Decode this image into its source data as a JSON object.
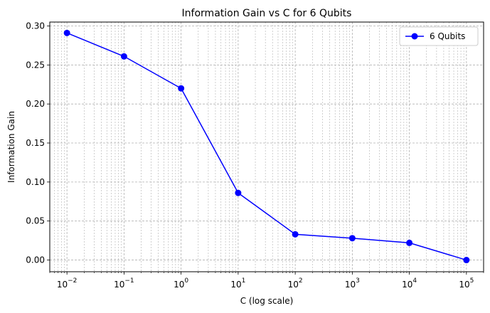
{
  "chart_data": {
    "type": "line",
    "title": "Information Gain vs C for 6 Qubits",
    "xlabel": "C (log scale)",
    "ylabel": "Information Gain",
    "xscale": "log",
    "xlim": [
      0.005,
      200000
    ],
    "ylim": [
      -0.015,
      0.305
    ],
    "grid": true,
    "legend_position": "top-right",
    "yticks": [
      0.0,
      0.05,
      0.1,
      0.15,
      0.2,
      0.25,
      0.3
    ],
    "ytick_labels": [
      "0.00",
      "0.05",
      "0.10",
      "0.15",
      "0.20",
      "0.25",
      "0.30"
    ],
    "xticks": [
      0.01,
      0.1,
      1,
      10,
      100,
      1000,
      10000,
      100000
    ],
    "xtick_labels": [
      {
        "base": "10",
        "exp": "−2"
      },
      {
        "base": "10",
        "exp": "−1"
      },
      {
        "base": "10",
        "exp": "0"
      },
      {
        "base": "10",
        "exp": "1"
      },
      {
        "base": "10",
        "exp": "2"
      },
      {
        "base": "10",
        "exp": "3"
      },
      {
        "base": "10",
        "exp": "4"
      },
      {
        "base": "10",
        "exp": "5"
      }
    ],
    "series": [
      {
        "name": "6 Qubits",
        "color": "#0000ff",
        "marker": "circle",
        "x": [
          0.01,
          0.1,
          1,
          10,
          100,
          1000,
          10000,
          100000
        ],
        "y": [
          0.291,
          0.261,
          0.22,
          0.086,
          0.033,
          0.028,
          0.022,
          0.0
        ]
      }
    ]
  }
}
